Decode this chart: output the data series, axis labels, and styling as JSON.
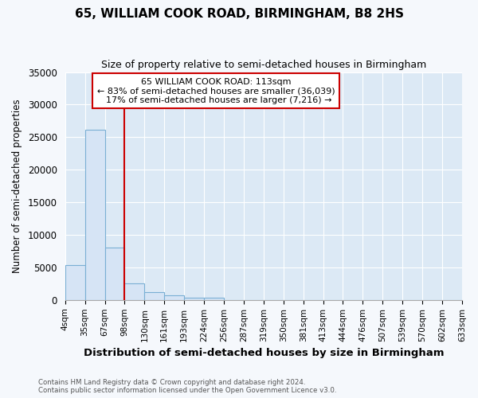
{
  "title": "65, WILLIAM COOK ROAD, BIRMINGHAM, B8 2HS",
  "subtitle": "Size of property relative to semi-detached houses in Birmingham",
  "xlabel": "Distribution of semi-detached houses by size in Birmingham",
  "ylabel": "Number of semi-detached properties",
  "footnote": "Contains HM Land Registry data © Crown copyright and database right 2024.\nContains public sector information licensed under the Open Government Licence v3.0.",
  "bin_labels": [
    "4sqm",
    "35sqm",
    "67sqm",
    "98sqm",
    "130sqm",
    "161sqm",
    "193sqm",
    "224sqm",
    "256sqm",
    "287sqm",
    "319sqm",
    "350sqm",
    "381sqm",
    "413sqm",
    "444sqm",
    "476sqm",
    "507sqm",
    "539sqm",
    "570sqm",
    "602sqm",
    "633sqm"
  ],
  "bar_values": [
    5400,
    26100,
    8100,
    2500,
    1200,
    700,
    400,
    300,
    0,
    0,
    0,
    0,
    0,
    0,
    0,
    0,
    0,
    0,
    0,
    0
  ],
  "bar_color": "#d6e4f5",
  "bar_edge_color": "#7aafd4",
  "vline_x": 3.0,
  "vline_color": "#cc0000",
  "annotation_text": "  65 WILLIAM COOK ROAD: 113sqm  \n← 83% of semi-detached houses are smaller (36,039)\n  17% of semi-detached houses are larger (7,216) →",
  "annotation_box_facecolor": "#ffffff",
  "annotation_box_edgecolor": "#cc0000",
  "ylim": [
    0,
    35000
  ],
  "yticks": [
    0,
    5000,
    10000,
    15000,
    20000,
    25000,
    30000,
    35000
  ],
  "plot_bg_color": "#dce9f5",
  "figure_bg_color": "#f5f8fc",
  "grid_color": "#ffffff",
  "title_fontsize": 11,
  "subtitle_fontsize": 9
}
